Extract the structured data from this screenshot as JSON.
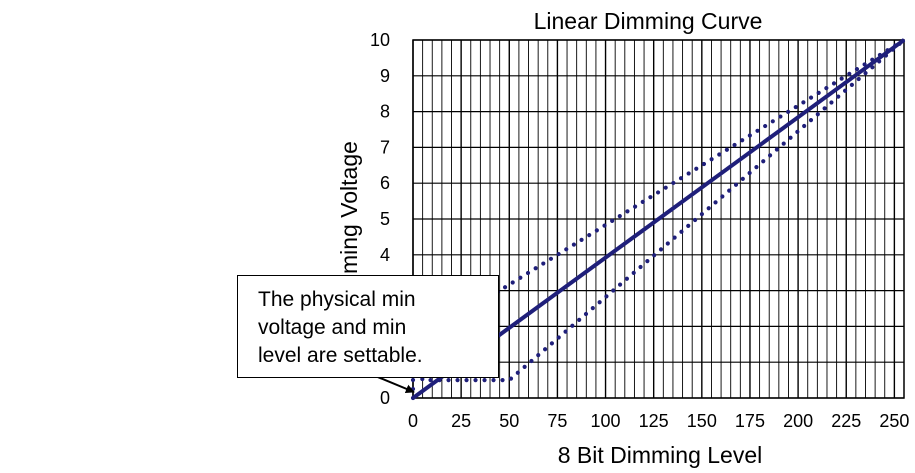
{
  "chart_data": {
    "type": "line",
    "title": "Linear Dimming Curve",
    "xlabel": "8 Bit Dimming Level",
    "ylabel": "Dimming Voltage",
    "xlim": [
      0,
      255
    ],
    "ylim": [
      0,
      10
    ],
    "xticks": [
      0,
      25,
      50,
      75,
      100,
      125,
      150,
      175,
      200,
      225,
      250
    ],
    "yticks": [
      0,
      1,
      2,
      3,
      4,
      5,
      6,
      7,
      8,
      9,
      10
    ],
    "grid": true,
    "colors": {
      "series": "#1f1f7a",
      "grid": "#000000",
      "text": "#000000"
    },
    "series": [
      {
        "style": "solid",
        "x": [
          0,
          255
        ],
        "y": [
          0,
          10
        ]
      },
      {
        "style": "dotted",
        "x": [
          0,
          0,
          255
        ],
        "y": [
          0,
          1.5,
          10
        ]
      },
      {
        "style": "dotted",
        "x": [
          0,
          5,
          50,
          255
        ],
        "y": [
          1.5,
          0.5,
          0.5,
          10
        ]
      }
    ]
  },
  "annotation": {
    "lines": [
      "The physical min",
      "voltage and min",
      "level are settable."
    ]
  }
}
